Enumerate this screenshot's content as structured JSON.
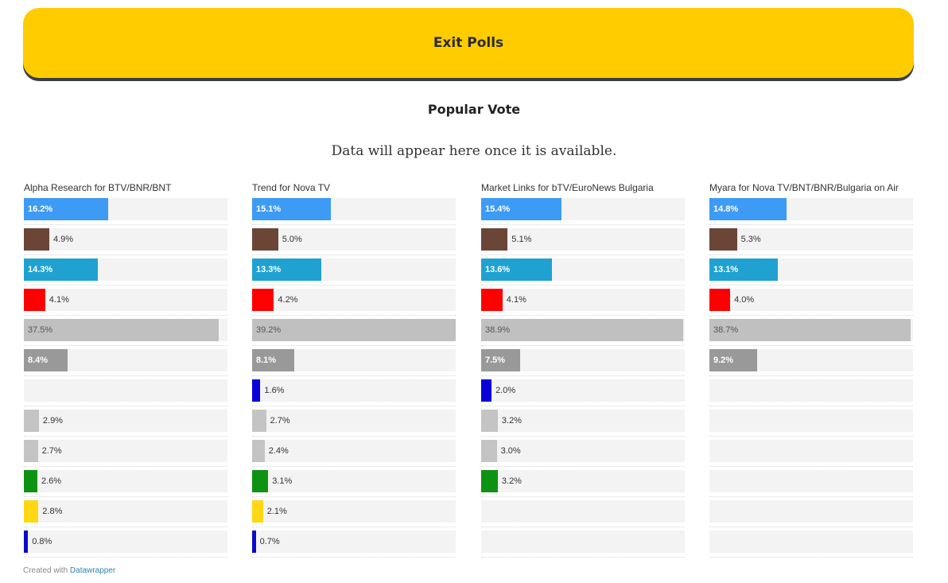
{
  "header": {
    "title": "Exit Polls"
  },
  "subtitle": "Popular Vote",
  "notice": "Data will appear here once it is available.",
  "footer": {
    "prefix": "Created with",
    "link": "Datawrapper"
  },
  "colors": [
    "#3D9BF5",
    "#6B4536",
    "#1FA2D1",
    "#FF0000",
    "#C0C0C0",
    "#999999",
    "#0A00D9",
    "#C4C4C4",
    "#C4C4C4",
    "#0D9311",
    "#FFD712",
    "#0A0ACC"
  ],
  "chart_data": {
    "type": "bar",
    "xlim": [
      0,
      39.2
    ],
    "panels": [
      {
        "title": "Alpha Research for BTV/BNR/BNT",
        "values": [
          16.2,
          4.9,
          14.3,
          4.1,
          37.5,
          8.4,
          null,
          2.9,
          2.7,
          2.6,
          2.8,
          0.8
        ]
      },
      {
        "title": "Trend for Nova TV",
        "values": [
          15.1,
          5.0,
          13.3,
          4.2,
          39.2,
          8.1,
          1.6,
          2.7,
          2.4,
          3.1,
          2.1,
          0.7
        ]
      },
      {
        "title": "Market Links for bTV/EuroNews Bulgaria",
        "values": [
          15.4,
          5.1,
          13.6,
          4.1,
          38.9,
          7.5,
          2.0,
          3.2,
          3.0,
          3.2,
          null,
          null
        ]
      },
      {
        "title": "Myara for Nova TV/BNT/BNR/Bulgaria on Air",
        "values": [
          14.8,
          5.3,
          13.1,
          4.0,
          38.7,
          9.2,
          null,
          null,
          null,
          null,
          null,
          null
        ]
      }
    ]
  }
}
